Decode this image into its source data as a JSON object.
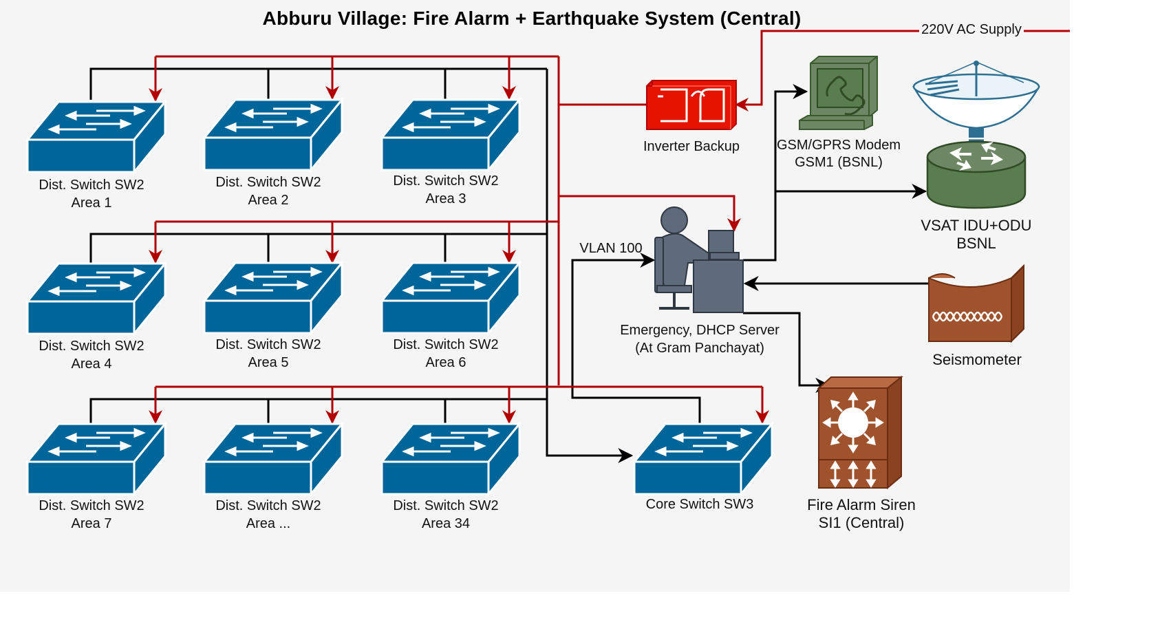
{
  "title": "Abburu Village: Fire Alarm + Earthquake System (Central)",
  "colors": {
    "background": "#f5f5f5",
    "switch_blue": "#006699",
    "power_red": "#b20000",
    "data_black": "#000000",
    "modem_green": "#5a7d4f",
    "inverter_red": "#e51400",
    "siren_brown": "#a0522d",
    "person_gray": "#5f6b7a"
  },
  "switches": [
    {
      "line1": "Dist. Switch SW2",
      "line2": "Area 1"
    },
    {
      "line1": "Dist. Switch SW2",
      "line2": "Area 2"
    },
    {
      "line1": "Dist. Switch SW2",
      "line2": "Area 3"
    },
    {
      "line1": "Dist. Switch SW2",
      "line2": "Area 4"
    },
    {
      "line1": "Dist. Switch SW2",
      "line2": "Area 5"
    },
    {
      "line1": "Dist. Switch SW2",
      "line2": "Area 6"
    },
    {
      "line1": "Dist. Switch SW2",
      "line2": "Area 7"
    },
    {
      "line1": "Dist. Switch SW2",
      "line2": "Area ..."
    },
    {
      "line1": "Dist. Switch SW2",
      "line2": "Area 34"
    }
  ],
  "core_switch": {
    "label": "Core Switch SW3"
  },
  "inverter": {
    "label": "Inverter Backup",
    "icon": "inverter-icon"
  },
  "modem": {
    "line1": "GSM/GPRS Modem",
    "line2": "GSM1 (BSNL)",
    "icon": "telephone-terminal-icon"
  },
  "vsat": {
    "line1": "VSAT IDU+ODU",
    "line2": "BSNL",
    "icon": "satellite-dish-router-icon"
  },
  "server": {
    "line1": "Emergency, DHCP Server",
    "line2": "(At Gram Panchayat)",
    "icon": "operator-workstation-icon"
  },
  "seismometer": {
    "label": "Seismometer",
    "icon": "seismometer-icon"
  },
  "siren": {
    "line1": "Fire Alarm Siren",
    "line2": "SI1 (Central)",
    "icon": "siren-icon"
  },
  "supply": {
    "label": "220V AC Supply"
  },
  "vlan": {
    "label": "VLAN 100"
  }
}
